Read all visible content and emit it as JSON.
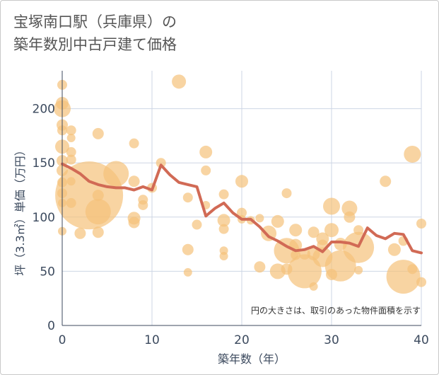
{
  "chart_data": {
    "type": "scatter",
    "title_lines": [
      "宝塚南口駅（兵庫県）の",
      "築年数別中古戸建て価格"
    ],
    "xlabel": "築年数（年）",
    "ylabel": "坪（3.3㎡）単価（万円）",
    "note": "円の大きさは、取引のあった物件面積を示す",
    "xlim": [
      0,
      40
    ],
    "ylim": [
      0,
      235
    ],
    "x_ticks": [
      0,
      10,
      20,
      30,
      40
    ],
    "y_ticks": [
      0,
      50,
      100,
      150,
      200
    ],
    "grid": true,
    "colors": {
      "bubble": "#f5c27a",
      "line": "#d16a55",
      "grid": "#cdd6e4"
    },
    "bubbles": [
      {
        "x": 0,
        "y": 222,
        "s": 7
      },
      {
        "x": 0,
        "y": 205,
        "s": 9
      },
      {
        "x": 0,
        "y": 200,
        "s": 12
      },
      {
        "x": 0,
        "y": 185,
        "s": 8
      },
      {
        "x": 0,
        "y": 180,
        "s": 7
      },
      {
        "x": 0,
        "y": 165,
        "s": 10
      },
      {
        "x": 0,
        "y": 152,
        "s": 8
      },
      {
        "x": 0,
        "y": 143,
        "s": 8
      },
      {
        "x": 0,
        "y": 132,
        "s": 7
      },
      {
        "x": 0,
        "y": 122,
        "s": 7
      },
      {
        "x": 0,
        "y": 113,
        "s": 6
      },
      {
        "x": 0,
        "y": 87,
        "s": 6
      },
      {
        "x": 1,
        "y": 180,
        "s": 7
      },
      {
        "x": 1,
        "y": 173,
        "s": 6
      },
      {
        "x": 1,
        "y": 160,
        "s": 7
      },
      {
        "x": 1,
        "y": 153,
        "s": 7
      },
      {
        "x": 1,
        "y": 133,
        "s": 6
      },
      {
        "x": 1,
        "y": 113,
        "s": 7
      },
      {
        "x": 2,
        "y": 85,
        "s": 8
      },
      {
        "x": 3,
        "y": 120,
        "s": 48
      },
      {
        "x": 4,
        "y": 177,
        "s": 8
      },
      {
        "x": 4,
        "y": 120,
        "s": 8
      },
      {
        "x": 4,
        "y": 105,
        "s": 18
      },
      {
        "x": 4,
        "y": 86,
        "s": 8
      },
      {
        "x": 6,
        "y": 140,
        "s": 18
      },
      {
        "x": 8,
        "y": 168,
        "s": 7
      },
      {
        "x": 8,
        "y": 133,
        "s": 8
      },
      {
        "x": 8,
        "y": 99,
        "s": 9
      },
      {
        "x": 8,
        "y": 95,
        "s": 8
      },
      {
        "x": 9,
        "y": 116,
        "s": 7
      },
      {
        "x": 9,
        "y": 111,
        "s": 7
      },
      {
        "x": 10,
        "y": 127,
        "s": 7
      },
      {
        "x": 11,
        "y": 150,
        "s": 7
      },
      {
        "x": 13,
        "y": 225,
        "s": 10
      },
      {
        "x": 14,
        "y": 118,
        "s": 7
      },
      {
        "x": 14,
        "y": 70,
        "s": 8
      },
      {
        "x": 14,
        "y": 49,
        "s": 6
      },
      {
        "x": 15,
        "y": 93,
        "s": 7
      },
      {
        "x": 16,
        "y": 160,
        "s": 9
      },
      {
        "x": 16,
        "y": 143,
        "s": 7
      },
      {
        "x": 16,
        "y": 111,
        "s": 6
      },
      {
        "x": 18,
        "y": 121,
        "s": 7
      },
      {
        "x": 18,
        "y": 97,
        "s": 9
      },
      {
        "x": 18,
        "y": 89,
        "s": 7
      },
      {
        "x": 18,
        "y": 69,
        "s": 6
      },
      {
        "x": 18,
        "y": 64,
        "s": 6
      },
      {
        "x": 20,
        "y": 133,
        "s": 9
      },
      {
        "x": 20,
        "y": 104,
        "s": 7
      },
      {
        "x": 20,
        "y": 98,
        "s": 6
      },
      {
        "x": 21,
        "y": 97,
        "s": 6
      },
      {
        "x": 22,
        "y": 99,
        "s": 6
      },
      {
        "x": 22,
        "y": 54,
        "s": 8
      },
      {
        "x": 23,
        "y": 85,
        "s": 11
      },
      {
        "x": 24,
        "y": 96,
        "s": 9
      },
      {
        "x": 24,
        "y": 50,
        "s": 11
      },
      {
        "x": 25,
        "y": 122,
        "s": 7
      },
      {
        "x": 25,
        "y": 69,
        "s": 18
      },
      {
        "x": 25,
        "y": 52,
        "s": 8
      },
      {
        "x": 26,
        "y": 88,
        "s": 9
      },
      {
        "x": 26,
        "y": 74,
        "s": 9
      },
      {
        "x": 26,
        "y": 65,
        "s": 7
      },
      {
        "x": 27,
        "y": 50,
        "s": 24
      },
      {
        "x": 27,
        "y": 66,
        "s": 8
      },
      {
        "x": 28,
        "y": 86,
        "s": 8
      },
      {
        "x": 28,
        "y": 66,
        "s": 9
      },
      {
        "x": 28,
        "y": 36,
        "s": 6
      },
      {
        "x": 29,
        "y": 80,
        "s": 9
      },
      {
        "x": 29,
        "y": 74,
        "s": 8
      },
      {
        "x": 29,
        "y": 63,
        "s": 14
      },
      {
        "x": 30,
        "y": 110,
        "s": 12
      },
      {
        "x": 30,
        "y": 88,
        "s": 10
      },
      {
        "x": 30,
        "y": 47,
        "s": 8
      },
      {
        "x": 31,
        "y": 55,
        "s": 22
      },
      {
        "x": 31,
        "y": 75,
        "s": 9
      },
      {
        "x": 32,
        "y": 108,
        "s": 11
      },
      {
        "x": 32,
        "y": 100,
        "s": 8
      },
      {
        "x": 33,
        "y": 88,
        "s": 7
      },
      {
        "x": 33,
        "y": 72,
        "s": 22
      },
      {
        "x": 33,
        "y": 51,
        "s": 6
      },
      {
        "x": 36,
        "y": 133,
        "s": 8
      },
      {
        "x": 37,
        "y": 70,
        "s": 9
      },
      {
        "x": 38,
        "y": 45,
        "s": 24
      },
      {
        "x": 38,
        "y": 78,
        "s": 7
      },
      {
        "x": 39,
        "y": 158,
        "s": 12
      },
      {
        "x": 39,
        "y": 52,
        "s": 7
      },
      {
        "x": 40,
        "y": 94,
        "s": 7
      },
      {
        "x": 40,
        "y": 40,
        "s": 7
      }
    ],
    "trend": {
      "x": [
        0,
        1,
        2,
        3,
        4,
        5,
        6,
        7,
        8,
        9,
        10,
        11,
        12,
        13,
        14,
        15,
        16,
        17,
        18,
        19,
        20,
        21,
        22,
        23,
        24,
        25,
        26,
        27,
        28,
        29,
        30,
        31,
        32,
        33,
        34,
        35,
        36,
        37,
        38,
        39,
        40
      ],
      "y": [
        149,
        145,
        140,
        133,
        130,
        128,
        127,
        127,
        125,
        128,
        125,
        148,
        139,
        132,
        130,
        128,
        101,
        108,
        113,
        104,
        98,
        98,
        91,
        82,
        78,
        73,
        69,
        70,
        73,
        68,
        77,
        77,
        76,
        73,
        90,
        83,
        80,
        85,
        84,
        69,
        67
      ]
    }
  }
}
